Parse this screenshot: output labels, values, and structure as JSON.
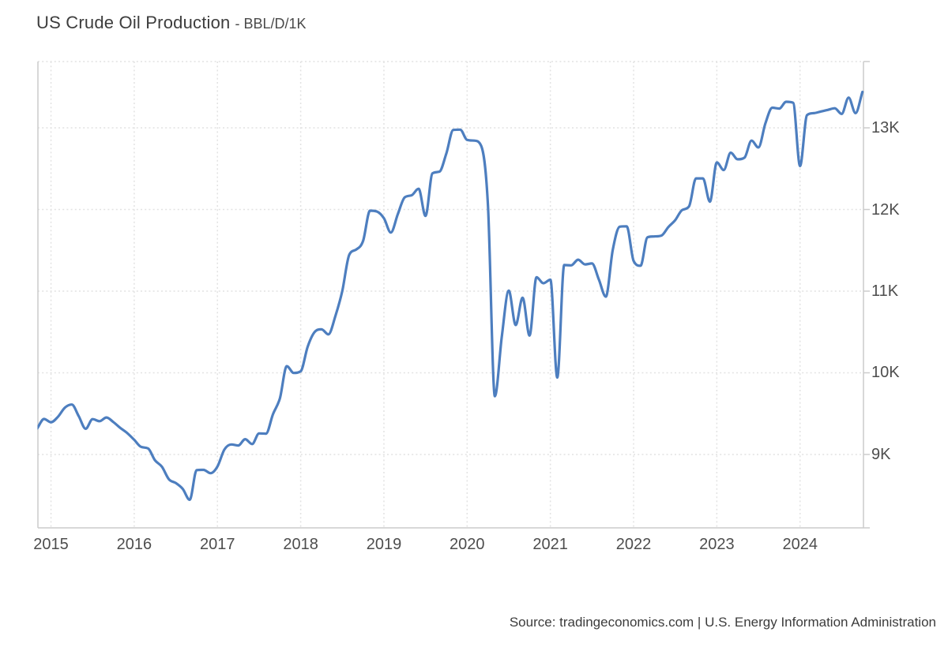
{
  "title": {
    "main": "US Crude Oil Production",
    "unit": "- BBL/D/1K"
  },
  "source": "Source: tradingeconomics.com | U.S. Energy Information Administration",
  "colors": {
    "line": "#4d7ebf",
    "grid": "#e2e2e2",
    "border": "#cccccc",
    "background": "#ffffff"
  },
  "chart_data": {
    "type": "line",
    "title": "US Crude Oil Production",
    "ylabel": "BBL/D/1K",
    "legend": "none",
    "grid": "dotted",
    "y_axis": {
      "side": "right",
      "range": [
        8101,
        13812
      ],
      "ticks": [
        {
          "value": 13000,
          "label": "13K"
        },
        {
          "value": 12000,
          "label": "12K"
        },
        {
          "value": 11000,
          "label": "11K"
        },
        {
          "value": 10000,
          "label": "10K"
        },
        {
          "value": 9000,
          "label": "9K"
        }
      ]
    },
    "x_axis": {
      "range": [
        2014.843,
        2024.762
      ],
      "ticks": [
        {
          "value": 2015,
          "label": "2015"
        },
        {
          "value": 2016,
          "label": "2016"
        },
        {
          "value": 2017,
          "label": "2017"
        },
        {
          "value": 2018,
          "label": "2018"
        },
        {
          "value": 2019,
          "label": "2019"
        },
        {
          "value": 2020,
          "label": "2020"
        },
        {
          "value": 2021,
          "label": "2021"
        },
        {
          "value": 2022,
          "label": "2022"
        },
        {
          "value": 2023,
          "label": "2023"
        },
        {
          "value": 2024,
          "label": "2024"
        }
      ]
    },
    "series": [
      {
        "name": "US Crude Oil Production",
        "frequency": "monthly",
        "start_year": 2014,
        "start_month": 11,
        "values": [
          9318,
          9435,
          9395,
          9461,
          9573,
          9611,
          9468,
          9315,
          9433,
          9407,
          9453,
          9396,
          9324,
          9262,
          9179,
          9092,
          9073,
          8928,
          8849,
          8696,
          8650,
          8578,
          8445,
          8808,
          8811,
          8771,
          8852,
          9060,
          9122,
          9110,
          9187,
          9127,
          9258,
          9255,
          9492,
          9687,
          10081,
          9998,
          10018,
          10318,
          10498,
          10532,
          10470,
          10694,
          11003,
          11445,
          11509,
          11616,
          11986,
          11975,
          11893,
          11718,
          11941,
          12149,
          12174,
          12254,
          11922,
          12443,
          12463,
          12686,
          12974,
          12978,
          12852,
          12844,
          12784,
          12061,
          9714,
          10443,
          11007,
          10585,
          10920,
          10456,
          11170,
          11097,
          11140,
          9942,
          11320,
          11316,
          11386,
          11328,
          11339,
          11141,
          10932,
          11508,
          11789,
          11794,
          11371,
          11311,
          11660,
          11671,
          11680,
          11784,
          11870,
          11993,
          12039,
          12381,
          12381,
          12096,
          12577,
          12483,
          12696,
          12615,
          12636,
          12844,
          12760,
          13053,
          13247,
          13236,
          13319,
          13308,
          12532,
          13155,
          13180,
          13200,
          13220,
          13240,
          13170,
          13370,
          13180,
          13440
        ]
      }
    ]
  }
}
